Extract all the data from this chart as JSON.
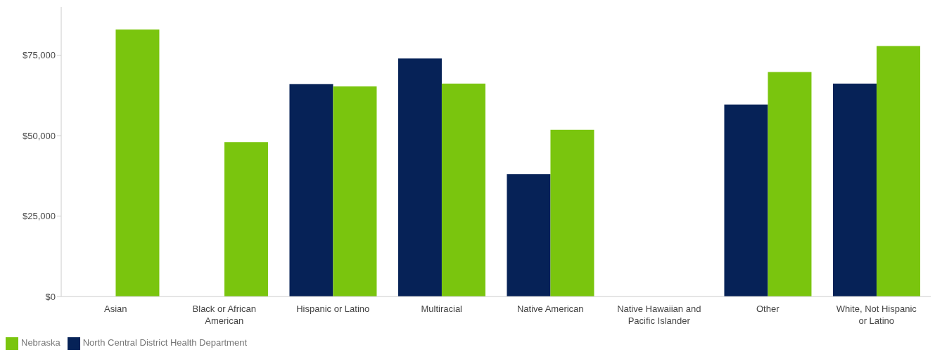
{
  "chart_data": {
    "type": "bar",
    "categories": [
      "Asian",
      "Black or African American",
      "Hispanic or Latino",
      "Multiracial",
      "Native American",
      "Native Hawaiian and Pacific Islander",
      "Other",
      "White, Not Hispanic or Latino"
    ],
    "series": [
      {
        "name": "North Central District Health Department",
        "color": "#062257",
        "values": [
          null,
          null,
          66000,
          74000,
          38000,
          null,
          59700,
          66200
        ]
      },
      {
        "name": "Nebraska",
        "color": "#7ac50e",
        "values": [
          83000,
          48000,
          65300,
          66200,
          51800,
          null,
          69800,
          77900
        ]
      }
    ],
    "ylim": [
      0,
      90000
    ],
    "yticks": [
      {
        "value": 0,
        "label": "$0"
      },
      {
        "value": 25000,
        "label": "$25,000"
      },
      {
        "value": 50000,
        "label": "$50,000"
      },
      {
        "value": 75000,
        "label": "$75,000"
      }
    ],
    "grid": false,
    "legend": "bottom left"
  }
}
